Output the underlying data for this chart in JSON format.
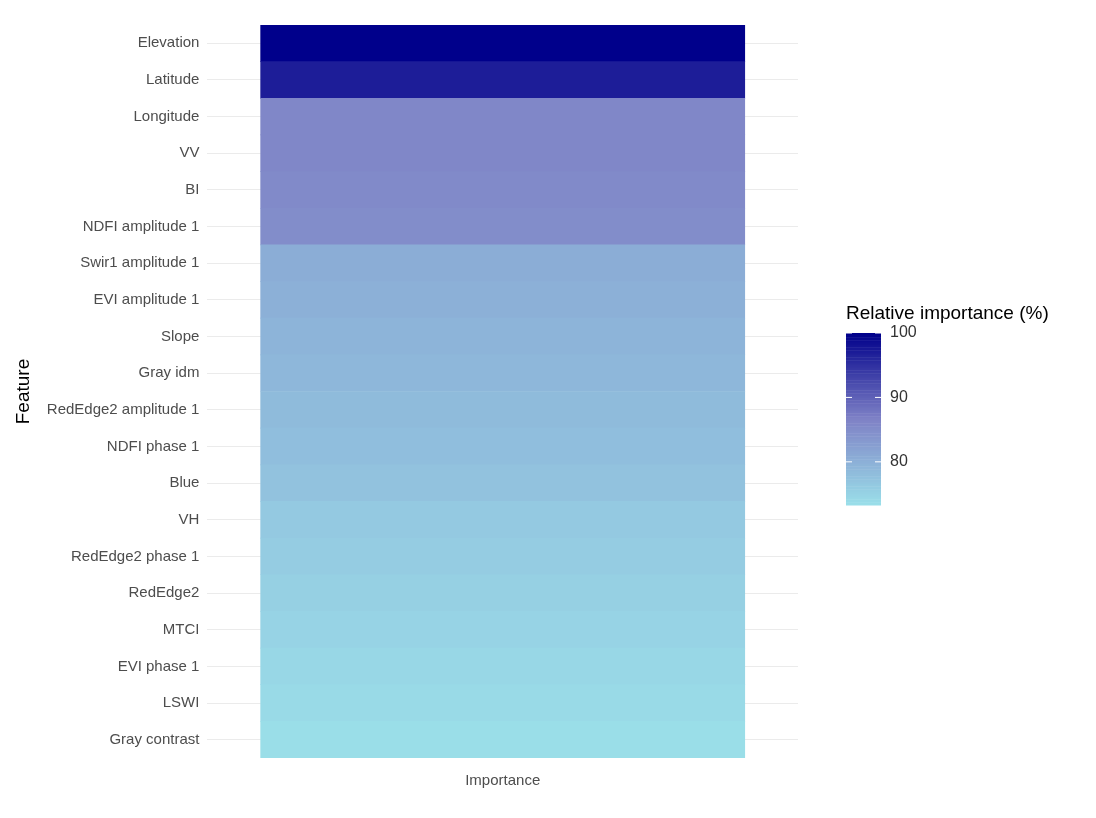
{
  "chart_data": {
    "type": "heatmap",
    "ylabel": "Feature",
    "clabel": "Relative importance (%)",
    "categories": [
      "Importance"
    ],
    "y_categories": [
      "Elevation",
      "Latitude",
      "Longitude",
      "VV",
      "BI",
      "NDFI amplitude 1",
      "Swir1 amplitude 1",
      "EVI amplitude 1",
      "Slope",
      "Gray idm",
      "RedEdge2 amplitude 1",
      "NDFI phase 1",
      "Blue",
      "VH",
      "RedEdge2 phase 1",
      "RedEdge2",
      "MTCI",
      "EVI phase 1",
      "LSWI",
      "Gray contrast"
    ],
    "cells": [
      [
        100
      ],
      [
        97
      ],
      [
        86
      ],
      [
        86
      ],
      [
        85.5
      ],
      [
        85
      ],
      [
        80.5
      ],
      [
        80
      ],
      [
        79.5
      ],
      [
        79
      ],
      [
        78.5
      ],
      [
        78
      ],
      [
        77.5
      ],
      [
        76.5
      ],
      [
        76
      ],
      [
        75.5
      ],
      [
        75
      ],
      [
        74.5
      ],
      [
        74
      ],
      [
        73.5
      ]
    ],
    "clim": [
      73.3,
      100
    ],
    "cticks": [
      80,
      90,
      100
    ],
    "grid": "y"
  }
}
